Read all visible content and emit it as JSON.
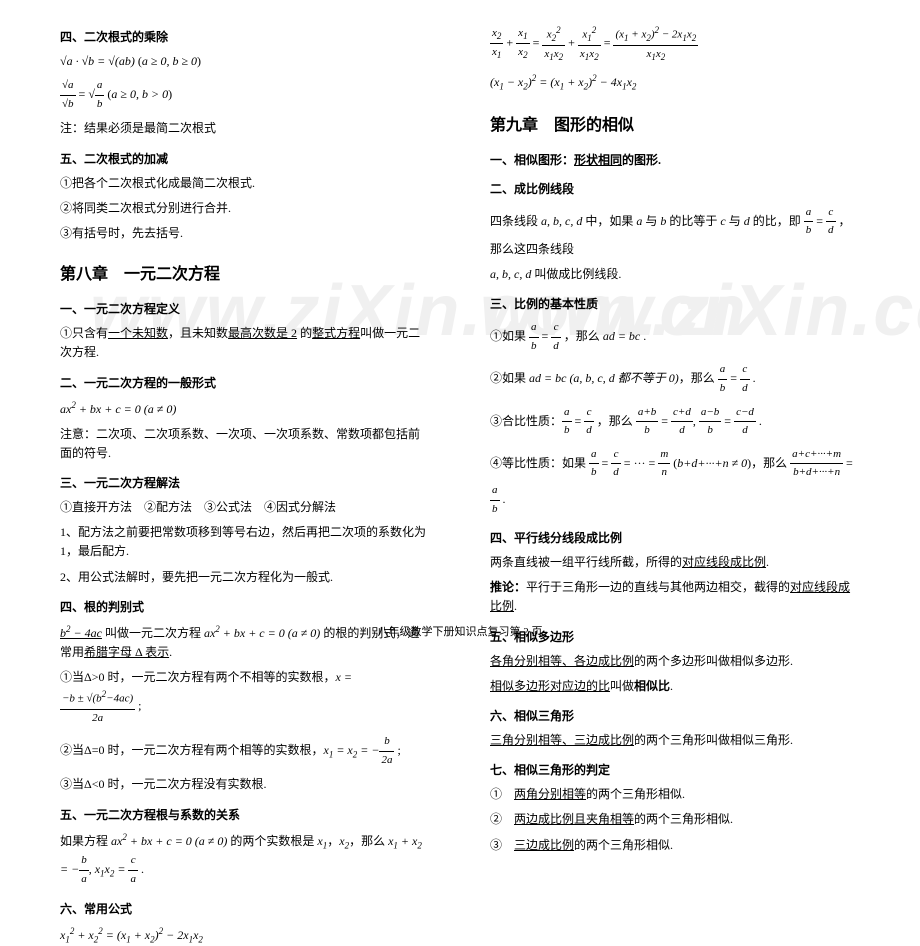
{
  "watermark": "www.ziXin.com.cn",
  "left": {
    "h4_1": "四、二次根式的乘除",
    "f1_html": "<span class='math'>√a · √b = √(ab)</span> (<span class='math'>a ≥ 0, b ≥ 0</span>)",
    "f2_html": "<span class='frac'><span class='num'>√a</span><span class='den'>√b</span></span> = <span class='math'>√</span><span class='frac'><span class='num'>a</span><span class='den'>b</span></span> (<span class='math'>a ≥ 0, b > 0</span>)",
    "note1": "注：结果必须是最简二次根式",
    "h5_1": "五、二次根式的加减",
    "l1": "①把各个二次根式化成最简二次根式.",
    "l2": "②将同类二次根式分别进行合并.",
    "l3": "③有括号时，先去括号.",
    "chapter8": "第八章　一元二次方程",
    "h1_8": "一、一元二次方程定义",
    "def8_html": "①只含有<span class='underline'>一个未知数</span>，且未知数<span class='underline'>最高次数是 2</span> 的<span class='underline'>整式方程</span>叫做一元二次方程.",
    "h2_8": "二、一元二次方程的一般形式",
    "gen_form_html": "<span class='math'>ax<span class='sup'>2</span> + bx + c = 0 (a ≠ 0)</span>",
    "note2": "注意：二次项、二次项系数、一次项、一次项系数、常数项都包括前面的符号.",
    "h3_8": "三、一元二次方程解法",
    "m1": "①直接开方法　②配方法　③公式法　④因式分解法",
    "m2": "1、配方法之前要把常数项移到等号右边，然后再把二次项的系数化为 1，最后配方.",
    "m3": "2、用公式法解时，要先把一元二次方程化为一般式.",
    "h4_8": "四、根的判别式",
    "disc_html": "<span class='underline math'>b<span class='sup'>2</span> − 4ac</span> 叫做一元二次方程 <span class='math'>ax<span class='sup'>2</span> + bx + c = 0 (a ≠ 0)</span> 的根的判别式，通常用<span class='underline'>希腊字母 Δ 表示</span>.",
    "d1_html": "①当Δ>0 时，一元二次方程有两个不相等的实数根，<span class='math'>x = </span><span class='frac'><span class='num'>−b ± √(b<span class='sup'>2</span>−4ac)</span><span class='den'>2a</span></span> ;",
    "d2_html": "②当Δ=0 时，一元二次方程有两个相等的实数根，<span class='math'>x<span class='sub'>1</span> = x<span class='sub'>2</span> = −</span><span class='frac'><span class='num'>b</span><span class='den'>2a</span></span> ;",
    "d3": "③当Δ<0 时，一元二次方程没有实数根.",
    "h5_8": "五、一元二次方程根与系数的关系",
    "vieta_html": "如果方程 <span class='math'>ax<span class='sup'>2</span> + bx + c = 0 (a ≠ 0)</span> 的两个实数根是 <span class='math'>x<span class='sub'>1</span></span>，<span class='math'>x<span class='sub'>2</span></span>，那么 <span class='math'>x<span class='sub'>1</span> + x<span class='sub'>2</span> = −</span><span class='frac'><span class='num'>b</span><span class='den'>a</span></span>, <span class='math'>x<span class='sub'>1</span>x<span class='sub'>2</span> = </span><span class='frac'><span class='num'>c</span><span class='den'>a</span></span> .",
    "h6_8": "六、常用公式",
    "cf1_html": "<span class='math'>x<span class='sub'>1</span><span class='sup'>2</span> + x<span class='sub'>2</span><span class='sup'>2</span> = (x<span class='sub'>1</span> + x<span class='sub'>2</span>)<span class='sup'>2</span> − 2x<span class='sub'>1</span>x<span class='sub'>2</span></span>"
  },
  "right": {
    "cf2_html": "<span class='frac'><span class='num'>x<span class='sub'>2</span></span><span class='den'>x<span class='sub'>1</span></span></span> + <span class='frac'><span class='num'>x<span class='sub'>1</span></span><span class='den'>x<span class='sub'>2</span></span></span> = <span class='frac'><span class='num'>x<span class='sub'>2</span><span class='sup'>2</span></span><span class='den'>x<span class='sub'>1</span>x<span class='sub'>2</span></span></span> + <span class='frac'><span class='num'>x<span class='sub'>1</span><span class='sup'>2</span></span><span class='den'>x<span class='sub'>1</span>x<span class='sub'>2</span></span></span> = <span class='frac'><span class='num'>(x<span class='sub'>1</span> + x<span class='sub'>2</span>)<span class='sup'>2</span> − 2x<span class='sub'>1</span>x<span class='sub'>2</span></span><span class='den'>x<span class='sub'>1</span>x<span class='sub'>2</span></span></span>",
    "cf3_html": "<span class='math'>(x<span class='sub'>1</span> − x<span class='sub'>2</span>)<span class='sup'>2</span> = (x<span class='sub'>1</span> + x<span class='sub'>2</span>)<span class='sup'>2</span> − 4x<span class='sub'>1</span>x<span class='sub'>2</span></span>",
    "chapter9": "第九章　图形的相似",
    "h1_9_html": "一、相似图形：<span class='underline'>形状相同</span>的图形.",
    "h2_9": "二、成比例线段",
    "prop1_html": "四条线段 <span class='math'>a, b, c, d</span> 中，如果 <span class='math'>a</span> 与 <span class='math'>b</span> 的比等于 <span class='math'>c</span> 与 <span class='math'>d</span> 的比，即 <span class='frac'><span class='num'>a</span><span class='den'>b</span></span> = <span class='frac'><span class='num'>c</span><span class='den'>d</span></span> ，那么这四条线段",
    "prop2_html": "<span class='math'>a, b, c, d</span> 叫做成比例线段.",
    "h3_9": "三、比例的基本性质",
    "p1_html": "①如果 <span class='frac'><span class='num'>a</span><span class='den'>b</span></span> = <span class='frac'><span class='num'>c</span><span class='den'>d</span></span> ，那么 <span class='math'>ad = bc</span> .",
    "p2_html": "②如果 <span class='math'>ad = bc (a, b, c, d 都不等于 0)</span>，那么 <span class='frac'><span class='num'>a</span><span class='den'>b</span></span> = <span class='frac'><span class='num'>c</span><span class='den'>d</span></span> .",
    "p3_html": "③合比性质：<span class='frac'><span class='num'>a</span><span class='den'>b</span></span> = <span class='frac'><span class='num'>c</span><span class='den'>d</span></span> ，那么 <span class='frac'><span class='num'>a+b</span><span class='den'>b</span></span> = <span class='frac'><span class='num'>c+d</span><span class='den'>d</span></span>, <span class='frac'><span class='num'>a−b</span><span class='den'>b</span></span> = <span class='frac'><span class='num'>c−d</span><span class='den'>d</span></span> .",
    "p4_html": "④等比性质：如果 <span class='frac'><span class='num'>a</span><span class='den'>b</span></span> = <span class='frac'><span class='num'>c</span><span class='den'>d</span></span> = ··· = <span class='frac'><span class='num'>m</span><span class='den'>n</span></span> (<span class='math'>b+d+···+n ≠ 0</span>)，那么 <span class='frac'><span class='num'>a+c+···+m</span><span class='den'>b+d+···+n</span></span> = <span class='frac'><span class='num'>a</span><span class='den'>b</span></span> .",
    "h4_9": "四、平行线分线段成比例",
    "pl1_html": "两条直线被一组平行线所截，所得的<span class='underline'>对应线段成比例</span>.",
    "pl2_html": "<b>推论：</b>平行于三角形一边的直线与其他两边相交，截得的<span class='underline'>对应线段成比例</span>.",
    "h5_9": "五、相似多边形",
    "poly1_html": "<span class='underline'>各角分别相等、各边成比例</span>的两个多边形叫做相似多边形.",
    "poly2_html": "<span class='underline'>相似多边形对应边的比</span>叫做<b>相似比</b>.",
    "h6_9": "六、相似三角形",
    "tri1_html": "<span class='underline'>三角分别相等、三边成比例</span>的两个三角形叫做相似三角形.",
    "h7_9": "七、相似三角形的判定",
    "j1_html": "①　<span class='underline'>两角分别相等</span>的两个三角形相似.",
    "j2_html": "②　<span class='underline'>两边成比例且夹角相等</span>的两个三角形相似.",
    "j3_html": "③　<span class='underline'>三边成比例</span>的两个三角形相似."
  },
  "footer": "八年级数学下册知识点复习第 2 页"
}
